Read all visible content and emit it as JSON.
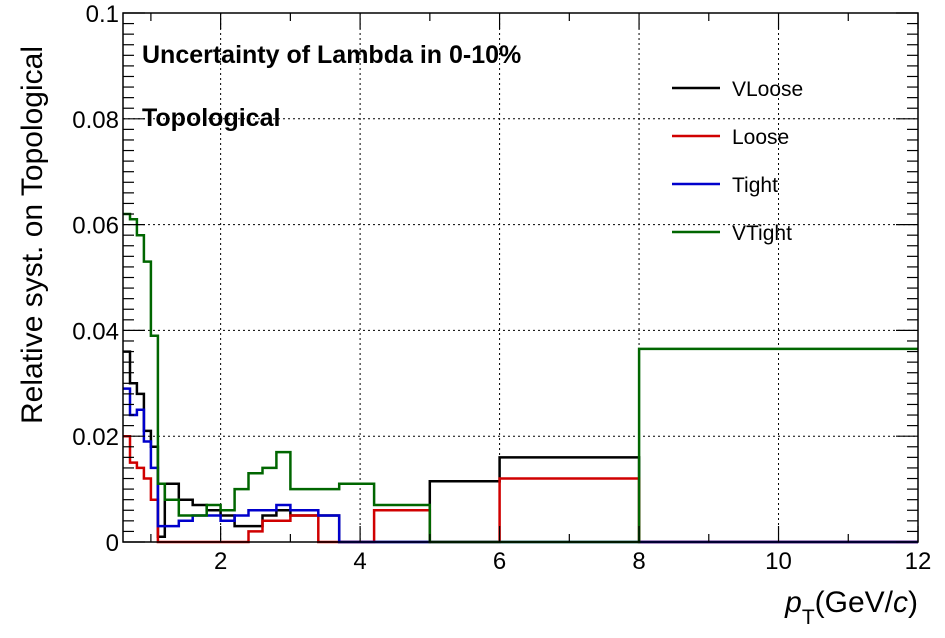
{
  "chart_data": {
    "type": "line",
    "step": true,
    "title": "",
    "xlabel_main": "p",
    "xlabel_sub": "T",
    "xlabel_rest": "(GeV/",
    "xlabel_c": "c",
    "xlabel_close": ")",
    "ylabel": "Relative syst. on Topological",
    "xlim": [
      0.6,
      12
    ],
    "ylim": [
      0,
      0.1
    ],
    "xticks": [
      2,
      4,
      6,
      8,
      10,
      12
    ],
    "yticks": [
      0,
      0.02,
      0.04,
      0.06,
      0.08,
      0.1
    ],
    "xtick_labels": [
      "2",
      "4",
      "6",
      "8",
      "10",
      "12"
    ],
    "ytick_labels": [
      "0",
      "0.02",
      "0.04",
      "0.06",
      "0.08",
      "0.1"
    ],
    "grid": true,
    "legend_position": "top-right",
    "annotations": [
      "Uncertainty of Lambda in 0-10%",
      "Topological"
    ],
    "bin_edges": [
      0.6,
      0.7,
      0.8,
      0.9,
      1.0,
      1.1,
      1.2,
      1.4,
      1.6,
      1.8,
      2.0,
      2.2,
      2.4,
      2.6,
      2.8,
      3.0,
      3.4,
      3.7,
      4.2,
      5.0,
      6.0,
      8.0,
      12.0
    ],
    "series": [
      {
        "name": "VLoose",
        "color": "#000000",
        "values": [
          0.036,
          0.03,
          0.028,
          0.021,
          0.018,
          0.001,
          0.011,
          0.008,
          0.007,
          0.006,
          0.005,
          0.003,
          0.003,
          0.005,
          0.006,
          0.005,
          0.005,
          0.0,
          0.0,
          0.0115,
          0.016,
          0.0,
          0.0
        ]
      },
      {
        "name": "Loose",
        "color": "#d00000",
        "values": [
          0.02,
          0.015,
          0.014,
          0.012,
          0.008,
          0.0,
          0.0,
          0.0,
          0.0,
          0.0,
          0.0,
          0.0,
          0.002,
          0.004,
          0.004,
          0.005,
          0.0,
          0.0,
          0.006,
          0.0,
          0.012,
          0.0,
          0.0
        ]
      },
      {
        "name": "Tight",
        "color": "#0000cc",
        "values": [
          0.029,
          0.024,
          0.025,
          0.019,
          0.014,
          0.003,
          0.003,
          0.004,
          0.005,
          0.005,
          0.004,
          0.005,
          0.006,
          0.006,
          0.007,
          0.006,
          0.005,
          0.0,
          0.0,
          0.0,
          0.0,
          0.0,
          0.0
        ]
      },
      {
        "name": "VTight",
        "color": "#006600",
        "values": [
          0.062,
          0.061,
          0.058,
          0.053,
          0.039,
          0.011,
          0.008,
          0.005,
          0.005,
          0.007,
          0.006,
          0.01,
          0.013,
          0.014,
          0.017,
          0.01,
          0.01,
          0.011,
          0.007,
          0.0,
          0.0,
          0.0365,
          0.0365
        ]
      }
    ]
  }
}
